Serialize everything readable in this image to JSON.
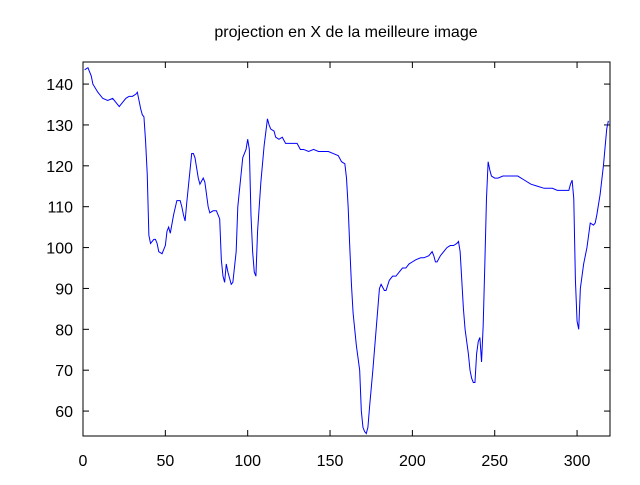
{
  "chart_data": {
    "type": "line",
    "title": "projection en X de la meilleure image",
    "x": [
      1,
      3,
      5,
      6,
      9,
      12,
      15,
      18,
      20,
      22,
      24,
      26,
      28,
      30,
      32,
      33,
      34,
      35,
      36,
      37,
      38,
      39,
      40,
      41,
      43,
      44,
      45,
      46,
      48,
      50,
      51,
      52,
      53,
      55,
      57,
      59,
      60,
      61,
      62,
      63,
      65,
      66,
      67,
      68,
      70,
      71,
      73,
      74,
      76,
      77,
      79,
      81,
      82,
      83,
      84,
      85,
      86,
      87,
      88,
      90,
      91,
      93,
      94,
      96,
      97,
      99,
      100,
      101,
      102,
      103,
      104,
      105,
      106,
      108,
      110,
      112,
      113,
      114,
      116,
      117,
      119,
      121,
      123,
      125,
      128,
      130,
      132,
      134,
      137,
      140,
      143,
      146,
      149,
      152,
      155,
      157,
      159,
      160,
      161,
      162,
      163,
      164,
      166,
      168,
      169,
      170,
      171,
      172,
      173,
      174,
      176,
      178,
      180,
      181,
      183,
      184,
      186,
      188,
      190,
      192,
      194,
      196,
      198,
      200,
      202,
      205,
      207,
      210,
      212,
      213,
      214,
      215,
      217,
      219,
      221,
      223,
      225,
      227,
      228,
      229,
      230,
      231,
      232,
      234,
      235,
      236,
      237,
      238,
      239,
      240,
      241,
      242,
      243,
      244,
      245,
      246,
      247,
      248,
      250,
      252,
      255,
      260,
      264,
      268,
      272,
      276,
      280,
      285,
      288,
      291,
      293,
      295,
      296,
      297,
      298,
      299,
      300,
      301,
      302,
      304,
      306,
      308,
      310,
      311,
      312,
      314,
      316,
      318,
      319
    ],
    "series": [
      {
        "color": "#0000ff",
        "values": [
          143.5,
          144,
          142,
          140,
          138,
          136.5,
          136,
          136.5,
          135.5,
          134.5,
          135.5,
          136.5,
          137,
          137,
          137.5,
          138,
          136,
          134,
          132.5,
          132,
          126,
          118,
          103,
          101,
          102,
          102,
          101,
          99,
          98.5,
          100.5,
          104,
          105,
          103.5,
          108,
          111.5,
          111.5,
          110,
          108,
          106.5,
          111,
          119,
          123,
          123,
          122,
          117,
          115.5,
          117,
          116,
          110,
          108.5,
          109,
          109,
          108,
          107,
          97,
          93,
          91.5,
          96,
          94,
          91,
          91.5,
          99,
          110,
          118,
          122,
          124,
          126.5,
          124,
          108,
          99,
          94,
          93,
          104,
          116,
          125,
          131.5,
          130,
          129,
          128.5,
          127,
          126.5,
          127,
          125.5,
          125.5,
          125.5,
          125.5,
          124,
          124,
          123.5,
          124,
          123.5,
          123.5,
          123.5,
          123,
          122.5,
          121,
          120.5,
          117,
          110,
          100,
          91,
          84,
          76,
          70,
          60,
          56,
          55,
          54.5,
          56,
          61,
          70,
          80,
          90,
          91,
          89.5,
          89.5,
          92,
          93,
          93,
          94,
          95,
          95,
          96,
          96.5,
          97,
          97.5,
          97.5,
          98,
          99,
          98,
          96.5,
          96.5,
          98,
          99,
          100,
          100.5,
          100.5,
          101,
          101.5,
          99,
          92,
          85,
          80,
          74,
          70,
          68,
          67,
          67,
          74,
          77,
          78,
          72,
          81,
          96,
          112,
          121,
          119,
          117.5,
          117,
          117,
          117.5,
          117.5,
          117.5,
          116.5,
          115.5,
          115,
          114.5,
          114.5,
          114,
          114,
          114,
          114,
          115.5,
          116.5,
          112,
          92,
          82,
          80,
          90,
          96,
          100,
          106,
          105.5,
          106,
          108,
          113,
          120,
          129,
          131
        ]
      }
    ],
    "xlim": [
      0,
      320
    ],
    "ylim": [
      53.9,
      145.4
    ],
    "xticks": [
      0,
      50,
      100,
      150,
      200,
      250,
      300
    ],
    "yticks": [
      60,
      70,
      80,
      90,
      100,
      110,
      120,
      130,
      140
    ]
  }
}
